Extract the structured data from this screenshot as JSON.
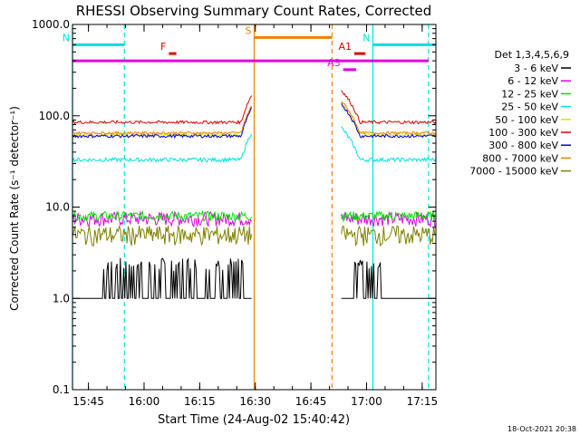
{
  "chart_data": {
    "type": "line",
    "title": "RHESSI Observing Summary Count Rates, Corrected",
    "xlabel": "Start Time (24-Aug-02 15:40:42)",
    "ylabel": "Corrected Count Rate (s⁻¹ detector⁻¹)",
    "yscale": "log",
    "ylim": [
      0.1,
      1000
    ],
    "y_ticks": [
      "0.1",
      "1.0",
      "10.0",
      "100.0",
      "1000.0"
    ],
    "xlim_minutes": [
      0,
      98
    ],
    "x_ticks": [
      "15:45",
      "16:00",
      "16:15",
      "16:30",
      "16:45",
      "17:00",
      "17:15"
    ],
    "legend_title": "Det 1,3,4,5,6,9",
    "legend_placement": "right",
    "footer_date": "18-Oct-2021 20:38",
    "series": [
      {
        "name": "3 - 6 keV",
        "color": "#000000",
        "base": 1.0,
        "noise": 1.0,
        "spiky": true
      },
      {
        "name": "6 - 12 keV",
        "color": "#e000e0",
        "base": 7.5,
        "noise": 0.18
      },
      {
        "name": "12 - 25 keV",
        "color": "#00e000",
        "base": 8.0,
        "noise": 0.12
      },
      {
        "name": "25 - 50 keV",
        "color": "#00e0e0",
        "base": 33,
        "noise": 0.05
      },
      {
        "name": "50 - 100 keV",
        "color": "#e0e000",
        "base": 62,
        "noise": 0.04
      },
      {
        "name": "100 - 300 keV",
        "color": "#e00000",
        "base": 85,
        "noise": 0.04
      },
      {
        "name": "300 - 800 keV",
        "color": "#0000e0",
        "base": 60,
        "noise": 0.04
      },
      {
        "name": "800 - 7000 keV",
        "color": "#f08000",
        "base": 65,
        "noise": 0.03
      },
      {
        "name": "7000 - 15000 keV",
        "color": "#808000",
        "base": 5.0,
        "noise": 0.25
      }
    ],
    "segments_minutes": [
      [
        0,
        48.5
      ],
      [
        72.5,
        98
      ]
    ],
    "markers": [
      {
        "label": "N",
        "color": "#00e0e0",
        "x": [
          0,
          14
        ],
        "level": 600
      },
      {
        "label": "N",
        "color": "#00e0e0",
        "x": [
          81,
          98
        ],
        "level": 600
      },
      {
        "label": "F",
        "color": "#e00000",
        "x": [
          26,
          28
        ],
        "level": 480
      },
      {
        "label": "S",
        "color": "#f08000",
        "x": [
          49,
          70
        ],
        "level": 720
      },
      {
        "label": "A1",
        "color": "#e00000",
        "x": [
          76,
          79
        ],
        "level": 480
      },
      {
        "label": "A3",
        "color": "#e000e0",
        "x": [
          73,
          76.5
        ],
        "level": 320
      },
      {
        "label": "",
        "color": "#e000e0",
        "x": [
          0,
          96
        ],
        "level": 400
      }
    ],
    "vlines": [
      {
        "x": 0,
        "color": "#00e0e0",
        "style": "solid"
      },
      {
        "x": 14,
        "color": "#00e0e0",
        "style": "dashed"
      },
      {
        "x": 49,
        "color": "#f08000",
        "style": "solid"
      },
      {
        "x": 70,
        "color": "#f08000",
        "style": "dashed"
      },
      {
        "x": 81,
        "color": "#00e0e0",
        "style": "solid"
      },
      {
        "x": 96,
        "color": "#00e0e0",
        "style": "dashed"
      }
    ]
  }
}
